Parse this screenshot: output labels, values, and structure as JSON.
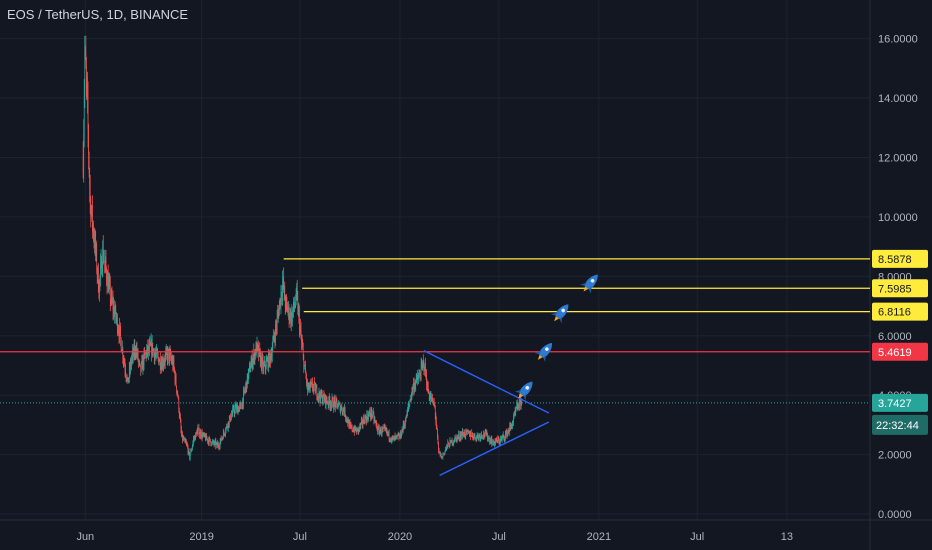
{
  "chart_data": {
    "type": "candlestick",
    "title": "EOS / TetherUS, 1D, BINANCE",
    "colors": {
      "background": "#131722",
      "grid": "#1e2330",
      "up": "#26a69a",
      "down": "#ef5350",
      "axis_text": "#b2b5be",
      "support_line": "#ffeb3b",
      "resistance_line": "#f23645",
      "current_price": "#26a69a",
      "triangle": "#2962ff",
      "rocket": "#2e7ad1"
    },
    "y_axis": {
      "ticks": [
        16,
        14,
        12,
        10,
        8,
        6,
        4,
        2,
        0
      ],
      "tick_labels": [
        "16.0000",
        "14.0000",
        "12.0000",
        "10.0000",
        "8.0000",
        "6.0000",
        "4.0000",
        "2.0000",
        "0.0000"
      ],
      "ylim": [
        -0.2,
        17.3
      ]
    },
    "x_axis": {
      "ticks": [
        {
          "date": "2018-06-01",
          "label": "Jun"
        },
        {
          "date": "2019-01-01",
          "label": "2019"
        },
        {
          "date": "2019-07-01",
          "label": "Jul"
        },
        {
          "date": "2020-01-01",
          "label": "2020"
        },
        {
          "date": "2020-07-01",
          "label": "Jul"
        },
        {
          "date": "2021-01-01",
          "label": "2021"
        },
        {
          "date": "2021-07-01",
          "label": "Jul"
        },
        {
          "date": "2021-12-13",
          "label": "13"
        }
      ],
      "xlim": [
        "2017-12-26",
        "2022-05-15"
      ]
    },
    "price_path": [
      [
        "2018-05-28",
        12.0
      ],
      [
        "2018-05-31",
        15.5
      ],
      [
        "2018-06-04",
        14.0
      ],
      [
        "2018-06-10",
        10.5
      ],
      [
        "2018-06-18",
        9.2
      ],
      [
        "2018-06-26",
        7.6
      ],
      [
        "2018-07-03",
        8.8
      ],
      [
        "2018-07-10",
        8.1
      ],
      [
        "2018-07-18",
        7.2
      ],
      [
        "2018-07-25",
        6.8
      ],
      [
        "2018-08-02",
        6.2
      ],
      [
        "2018-08-10",
        5.3
      ],
      [
        "2018-08-18",
        4.4
      ],
      [
        "2018-08-25",
        5.2
      ],
      [
        "2018-09-02",
        5.6
      ],
      [
        "2018-09-10",
        4.8
      ],
      [
        "2018-09-20",
        5.4
      ],
      [
        "2018-10-01",
        5.6
      ],
      [
        "2018-10-10",
        5.3
      ],
      [
        "2018-10-20",
        5.1
      ],
      [
        "2018-11-01",
        5.4
      ],
      [
        "2018-11-10",
        5.0
      ],
      [
        "2018-11-18",
        4.0
      ],
      [
        "2018-11-25",
        2.6
      ],
      [
        "2018-12-05",
        2.3
      ],
      [
        "2018-12-10",
        1.9
      ],
      [
        "2018-12-17",
        2.5
      ],
      [
        "2018-12-25",
        2.8
      ],
      [
        "2019-01-05",
        2.6
      ],
      [
        "2019-01-20",
        2.4
      ],
      [
        "2019-02-01",
        2.3
      ],
      [
        "2019-02-15",
        2.9
      ],
      [
        "2019-03-01",
        3.5
      ],
      [
        "2019-03-15",
        3.6
      ],
      [
        "2019-04-01",
        5.0
      ],
      [
        "2019-04-12",
        5.6
      ],
      [
        "2019-04-25",
        4.9
      ],
      [
        "2019-05-08",
        5.3
      ],
      [
        "2019-05-20",
        6.5
      ],
      [
        "2019-05-30",
        7.8
      ],
      [
        "2019-06-05",
        7.0
      ],
      [
        "2019-06-15",
        6.6
      ],
      [
        "2019-06-25",
        7.3
      ],
      [
        "2019-07-01",
        6.2
      ],
      [
        "2019-07-08",
        5.1
      ],
      [
        "2019-07-15",
        4.2
      ],
      [
        "2019-07-25",
        4.3
      ],
      [
        "2019-08-05",
        4.0
      ],
      [
        "2019-08-20",
        3.8
      ],
      [
        "2019-09-05",
        3.7
      ],
      [
        "2019-09-20",
        3.5
      ],
      [
        "2019-10-01",
        2.9
      ],
      [
        "2019-10-15",
        2.8
      ],
      [
        "2019-10-28",
        3.2
      ],
      [
        "2019-11-10",
        3.4
      ],
      [
        "2019-11-22",
        2.8
      ],
      [
        "2019-12-05",
        2.8
      ],
      [
        "2019-12-18",
        2.5
      ],
      [
        "2020-01-01",
        2.6
      ],
      [
        "2020-01-12",
        3.2
      ],
      [
        "2020-01-25",
        4.3
      ],
      [
        "2020-02-05",
        4.6
      ],
      [
        "2020-02-14",
        5.1
      ],
      [
        "2020-02-22",
        4.1
      ],
      [
        "2020-03-05",
        3.6
      ],
      [
        "2020-03-12",
        2.1
      ],
      [
        "2020-03-18",
        1.9
      ],
      [
        "2020-03-28",
        2.3
      ],
      [
        "2020-04-10",
        2.5
      ],
      [
        "2020-04-25",
        2.7
      ],
      [
        "2020-05-08",
        2.7
      ],
      [
        "2020-05-20",
        2.6
      ],
      [
        "2020-06-05",
        2.7
      ],
      [
        "2020-06-20",
        2.4
      ],
      [
        "2020-07-05",
        2.5
      ],
      [
        "2020-07-15",
        2.7
      ],
      [
        "2020-07-25",
        3.0
      ],
      [
        "2020-08-02",
        3.5
      ],
      [
        "2020-08-10",
        3.8
      ],
      [
        "2020-08-12",
        3.75
      ]
    ],
    "horizontal_levels": [
      {
        "value": 8.5878,
        "label": "8.5878",
        "kind": "support",
        "from": "2019-06-01"
      },
      {
        "value": 7.5985,
        "label": "7.5985",
        "kind": "support",
        "from": "2019-07-05"
      },
      {
        "value": 6.8116,
        "label": "6.8116",
        "kind": "support",
        "from": "2019-07-08"
      },
      {
        "value": 5.4619,
        "label": "5.4619",
        "kind": "resistance",
        "from": "2017-12-26"
      }
    ],
    "current_price": {
      "value": 3.7427,
      "label": "3.7427",
      "countdown": "22:32:44"
    },
    "triangle": [
      [
        "2020-02-14",
        5.5
      ],
      [
        "2020-10-01",
        3.4
      ],
      [
        "2020-03-14",
        1.3
      ],
      [
        "2020-10-01",
        3.1
      ]
    ],
    "rockets": [
      {
        "date": "2020-08-20",
        "value": 4.2
      },
      {
        "date": "2020-09-25",
        "value": 5.5
      },
      {
        "date": "2020-10-25",
        "value": 6.8
      },
      {
        "date": "2020-12-18",
        "value": 7.8
      }
    ]
  }
}
